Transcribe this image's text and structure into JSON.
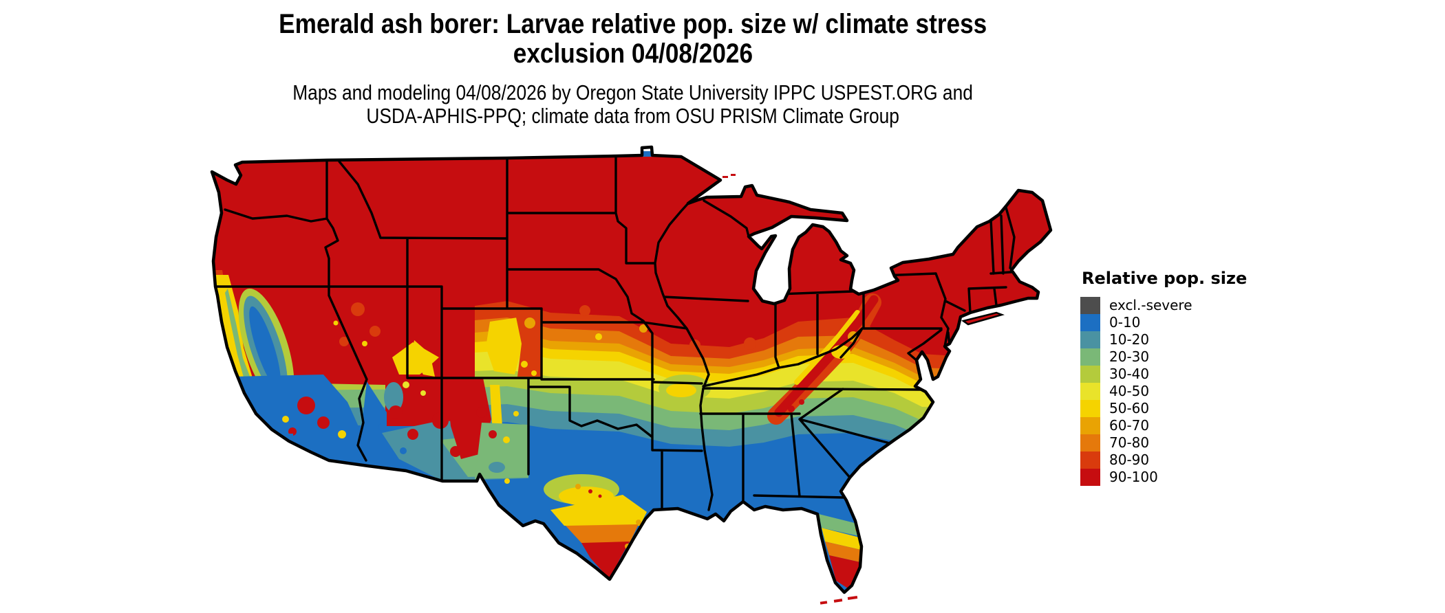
{
  "figure": {
    "title_line1": "Emerald ash borer: Larvae relative pop. size w/ climate stress",
    "title_line2": "exclusion 04/08/2026",
    "subtitle_line1": "Maps and modeling 04/08/2026 by Oregon State University IPPC USPEST.ORG and",
    "subtitle_line2": "USDA-APHIS-PPQ; climate data from OSU PRISM Climate Group"
  },
  "legend": {
    "title": "Relative pop. size",
    "items": [
      {
        "label": "excl.-severe",
        "color": "gray"
      },
      {
        "label": "0-10",
        "color": "blue"
      },
      {
        "label": "10-20",
        "color": "teal"
      },
      {
        "label": "20-30",
        "color": "green"
      },
      {
        "label": "30-40",
        "color": "yellowgreen"
      },
      {
        "label": "40-50",
        "color": "yellow"
      },
      {
        "label": "50-60",
        "color": "gold"
      },
      {
        "label": "60-70",
        "color": "amber"
      },
      {
        "label": "70-80",
        "color": "orange"
      },
      {
        "label": "80-90",
        "color": "redorange"
      },
      {
        "label": "90-100",
        "color": "red"
      }
    ]
  },
  "colors": {
    "gray": "#4D4D4D",
    "blue": "#1C6FC2",
    "teal": "#4A92A2",
    "green": "#7AB877",
    "yellowgreen": "#B4CB3C",
    "yellow": "#E9E32A",
    "gold": "#F5D300",
    "amber": "#E9A303",
    "orange": "#E5790B",
    "redorange": "#D93B0D",
    "red": "#C60D10",
    "border": "#000000"
  },
  "map": {
    "region": "Contiguous United States"
  }
}
